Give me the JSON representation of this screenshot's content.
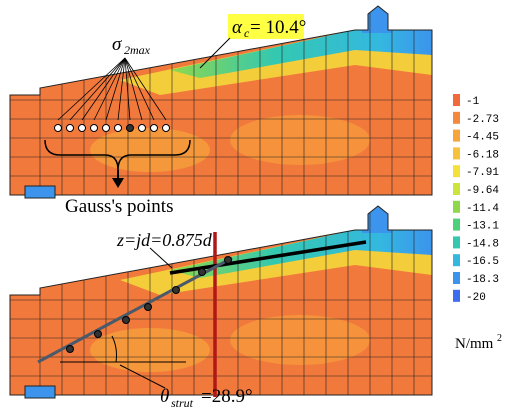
{
  "annotations": {
    "alpha_symbol": "α",
    "alpha_sub": "c",
    "alpha_value": " = 10.4°",
    "sigma_symbol": "σ",
    "sigma_sub": "2max",
    "gauss": "Gauss's points",
    "lever_arm": "z=jd=0.875d",
    "theta_symbol": "θ",
    "theta_sub": "strut",
    "theta_value": "=28.9°"
  },
  "legend": {
    "levels": [
      -1,
      -2.73,
      -4.45,
      -6.18,
      -7.91,
      -9.64,
      -11.4,
      -13.1,
      -14.8,
      -16.5,
      -18.3,
      -20
    ],
    "colors": [
      "#f26a3c",
      "#f4883c",
      "#f7a43a",
      "#f7c23a",
      "#f4e23a",
      "#cde43c",
      "#8fd84a",
      "#4cd07a",
      "#34c8b0",
      "#34b8e0",
      "#3c94ec",
      "#3c6cf0"
    ],
    "unit": "N/mm",
    "unit_sup": "2"
  }
}
